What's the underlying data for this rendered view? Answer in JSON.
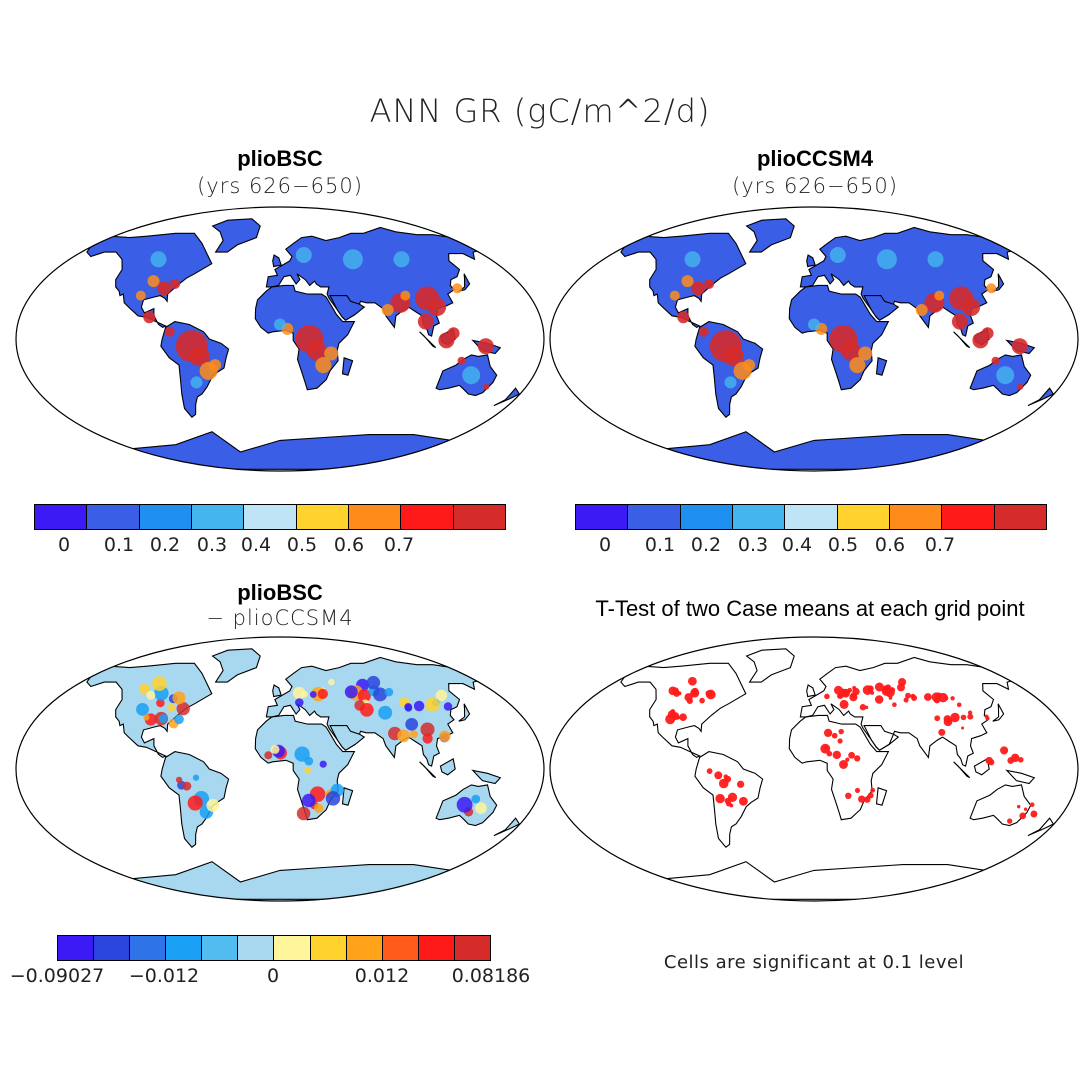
{
  "title": "ANN GR (gC/m^2/d)",
  "panels": [
    {
      "title": "plioBSC",
      "subtitle": "(yrs 626−650)"
    },
    {
      "title": "plioCCSM4",
      "subtitle": "(yrs 626−650)"
    },
    {
      "title": "plioBSC",
      "subtitle": "− plioCCSM4"
    },
    {
      "title": "T-Test of two Case means at each grid point",
      "subtitle": ""
    }
  ],
  "colorbars": {
    "absolute": {
      "colors": [
        "#3b1af5",
        "#3a5ee6",
        "#1f8ff0",
        "#45b5ef",
        "#bfe4f5",
        "#ffd22e",
        "#ff8c1a",
        "#ff1a1a",
        "#d62b2b"
      ],
      "labels": [
        "0",
        "0.1",
        "0.2",
        "0.3",
        "0.4",
        "0.5",
        "0.6",
        "0.7"
      ]
    },
    "difference": {
      "colors": [
        "#3b1af5",
        "#2a45dd",
        "#2f73e8",
        "#1aa0f5",
        "#50bcef",
        "#a8d8ef",
        "#fff59a",
        "#ffd22e",
        "#ffa31a",
        "#ff5a1a",
        "#ff1a1a",
        "#d62b2b"
      ],
      "labels": [
        "−0.09027",
        "−0.012",
        "0",
        "0.012",
        "0.08186"
      ]
    }
  },
  "note": "Cells are significant at 0.1 level",
  "map_colors": {
    "ocean": "#ffffff",
    "land_low": "#3a5ee6",
    "high": "#d62b2b",
    "diff_base": "#a8d8ef",
    "signif": "#ff1a1a"
  }
}
